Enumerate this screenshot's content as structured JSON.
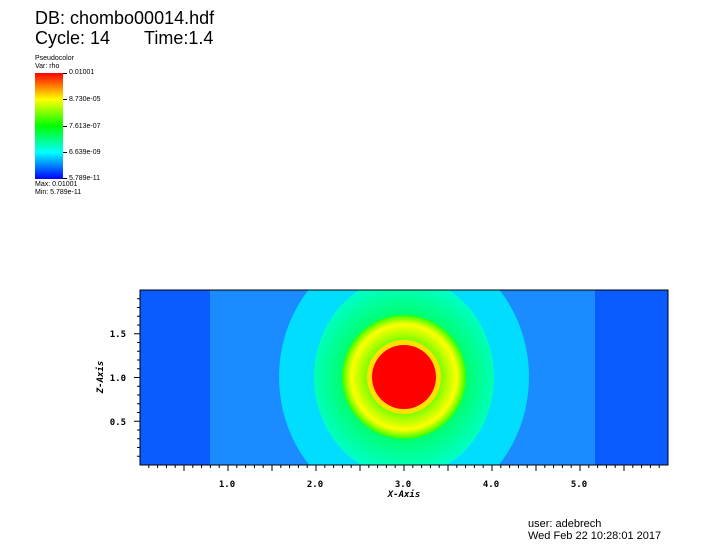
{
  "header": {
    "db": "DB: chombo00014.hdf",
    "cycle": "Cycle: 14",
    "time": "Time:1.4"
  },
  "legend": {
    "title": "Pseudocolor",
    "var": "Var: rho",
    "ticks": [
      "0.01001",
      "8.730e-05",
      "7.613e-07",
      "6.639e-09",
      "5.789e-11"
    ],
    "max": "Max: 0.01001",
    "min": "Min: 5.789e-11",
    "colors": [
      "#ff0000",
      "#ffff00",
      "#00ff00",
      "#00ffff",
      "#0000ff"
    ]
  },
  "plot": {
    "xlabel": "X-Axis",
    "ylabel": "Z-Axis",
    "xticks": [
      "1.0",
      "2.0",
      "3.0",
      "4.0",
      "5.0"
    ],
    "yticks": [
      "0.5",
      "1.0",
      "1.5"
    ],
    "xrange": [
      0,
      6
    ],
    "yrange": [
      0,
      2
    ],
    "blob_center": [
      3.0,
      1.0
    ]
  },
  "footer": {
    "user": "user: adebrech",
    "date": "Wed Feb 22 10:28:01 2017"
  }
}
